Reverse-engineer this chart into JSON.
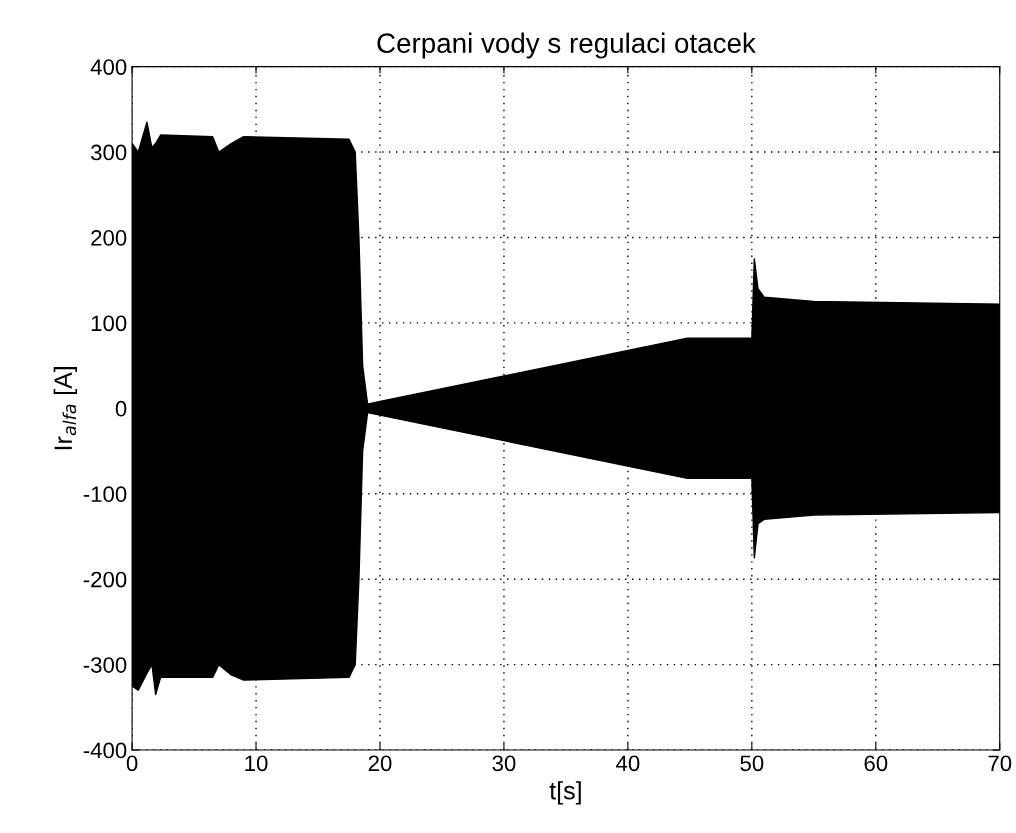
{
  "chart_data": {
    "type": "area",
    "title": "Cerpani vody s regulaci otacek",
    "xlabel": "t[s]",
    "ylabel": "Ir$_{alfa}$ [A]",
    "xlim": [
      0,
      70
    ],
    "xticks": [
      0,
      10,
      20,
      30,
      40,
      50,
      60,
      70
    ],
    "ylim": [
      -400,
      400
    ],
    "yticks": [
      -400,
      -300,
      -200,
      -100,
      0,
      100,
      200,
      300,
      400
    ],
    "grid": true,
    "x": [
      0,
      0.5,
      1.2,
      1.6,
      1.9,
      2.3,
      6.5,
      7,
      8,
      9,
      17.5,
      18,
      18.3,
      18.6,
      19,
      20,
      44.8,
      50,
      50.2,
      50.5,
      51,
      55,
      70
    ],
    "series": [
      {
        "color": "#000000",
        "values": [
          310,
          300,
          335,
          305,
          310,
          320,
          318,
          300,
          310,
          318,
          315,
          300,
          200,
          50,
          5,
          8,
          82,
          82,
          175,
          140,
          130,
          125,
          122
        ]
      },
      {
        "color": "#000000",
        "values": [
          -325,
          -330,
          -310,
          -300,
          -335,
          -315,
          -315,
          -300,
          -312,
          -318,
          -315,
          -300,
          -200,
          -50,
          -5,
          -8,
          -82,
          -82,
          -175,
          -135,
          -130,
          -125,
          -122
        ]
      }
    ]
  }
}
